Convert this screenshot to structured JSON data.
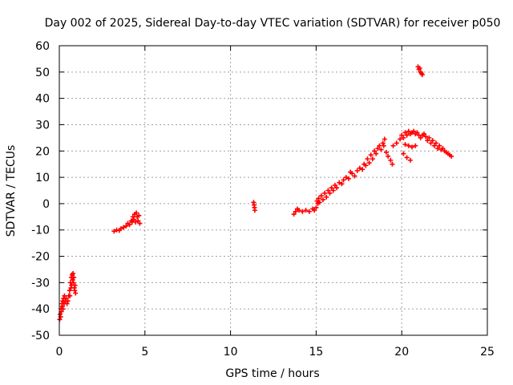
{
  "chart_data": {
    "type": "scatter",
    "title": "Day 002 of 2025, Sidereal Day-to-day VTEC variation (SDTVAR) for receiver p050",
    "xlabel": "GPS time / hours",
    "ylabel": "SDTVAR / TECUs",
    "xlim": [
      0,
      25
    ],
    "ylim": [
      -50,
      60
    ],
    "xticks": [
      0,
      5,
      10,
      15,
      20,
      25
    ],
    "yticks": [
      -50,
      -40,
      -30,
      -20,
      -10,
      0,
      10,
      20,
      30,
      40,
      50,
      60
    ],
    "xtick_labels": [
      "0",
      "5",
      "10",
      "15",
      "20",
      "25"
    ],
    "ytick_labels": [
      "-50",
      "-40",
      "-30",
      "-20",
      "-10",
      "0",
      "10",
      "20",
      "30",
      "40",
      "50",
      "60"
    ],
    "grid": true,
    "marker": "plus",
    "series": [
      {
        "color": "#ff0000",
        "points": [
          [
            0.02,
            -44
          ],
          [
            0.05,
            -42
          ],
          [
            0.08,
            -43
          ],
          [
            0.1,
            -40
          ],
          [
            0.12,
            -41
          ],
          [
            0.15,
            -38
          ],
          [
            0.18,
            -39
          ],
          [
            0.2,
            -37
          ],
          [
            0.22,
            -40
          ],
          [
            0.25,
            -36
          ],
          [
            0.28,
            -38
          ],
          [
            0.3,
            -35
          ],
          [
            0.35,
            -37
          ],
          [
            0.4,
            -36
          ],
          [
            0.45,
            -38
          ],
          [
            0.5,
            -37
          ],
          [
            0.55,
            -35
          ],
          [
            0.6,
            -33
          ],
          [
            0.62,
            -35
          ],
          [
            0.65,
            -30
          ],
          [
            0.68,
            -32
          ],
          [
            0.7,
            -28
          ],
          [
            0.72,
            -31
          ],
          [
            0.75,
            -27
          ],
          [
            0.78,
            -29
          ],
          [
            0.8,
            -26.5
          ],
          [
            0.82,
            -30
          ],
          [
            0.85,
            -28
          ],
          [
            0.88,
            -32
          ],
          [
            0.9,
            -33
          ],
          [
            0.92,
            -31
          ],
          [
            0.95,
            -34
          ],
          [
            3.2,
            -10.5
          ],
          [
            3.35,
            -10
          ],
          [
            3.5,
            -10.2
          ],
          [
            3.6,
            -9.5
          ],
          [
            3.75,
            -9
          ],
          [
            3.9,
            -8.5
          ],
          [
            4.0,
            -7.5
          ],
          [
            4.1,
            -8
          ],
          [
            4.2,
            -6.5
          ],
          [
            4.25,
            -7
          ],
          [
            4.3,
            -5
          ],
          [
            4.35,
            -6
          ],
          [
            4.4,
            -4
          ],
          [
            4.45,
            -7
          ],
          [
            4.5,
            -3.5
          ],
          [
            4.55,
            -5
          ],
          [
            4.6,
            -6.5
          ],
          [
            4.65,
            -4.5
          ],
          [
            4.7,
            -7.5
          ],
          [
            11.35,
            0.5
          ],
          [
            11.38,
            -0.5
          ],
          [
            11.4,
            -1.5
          ],
          [
            11.42,
            -2.5
          ],
          [
            13.7,
            -4
          ],
          [
            13.8,
            -3
          ],
          [
            13.9,
            -2
          ],
          [
            14.0,
            -2.5
          ],
          [
            14.2,
            -3
          ],
          [
            14.4,
            -2.5
          ],
          [
            14.6,
            -3
          ],
          [
            14.8,
            -2
          ],
          [
            14.9,
            -2.5
          ],
          [
            15.0,
            -1.5
          ],
          [
            15.05,
            1
          ],
          [
            15.1,
            0
          ],
          [
            15.15,
            2
          ],
          [
            15.2,
            0.5
          ],
          [
            15.3,
            3
          ],
          [
            15.4,
            1.5
          ],
          [
            15.5,
            4
          ],
          [
            15.6,
            2.5
          ],
          [
            15.7,
            5
          ],
          [
            15.8,
            4
          ],
          [
            15.9,
            6
          ],
          [
            16.0,
            5
          ],
          [
            16.1,
            7
          ],
          [
            16.2,
            6
          ],
          [
            16.35,
            8
          ],
          [
            16.5,
            7.5
          ],
          [
            16.6,
            9
          ],
          [
            16.75,
            10
          ],
          [
            16.9,
            9.5
          ],
          [
            17.0,
            12
          ],
          [
            17.1,
            11.5
          ],
          [
            17.25,
            10.5
          ],
          [
            17.4,
            12.5
          ],
          [
            17.55,
            13.5
          ],
          [
            17.7,
            13
          ],
          [
            17.8,
            15
          ],
          [
            17.9,
            14.5
          ],
          [
            18.0,
            17
          ],
          [
            18.1,
            15.5
          ],
          [
            18.2,
            18.5
          ],
          [
            18.3,
            17
          ],
          [
            18.4,
            20
          ],
          [
            18.5,
            19
          ],
          [
            18.6,
            21
          ],
          [
            18.7,
            22
          ],
          [
            18.8,
            20.5
          ],
          [
            18.9,
            23
          ],
          [
            19.0,
            24.5
          ],
          [
            18.95,
            22
          ],
          [
            19.1,
            19.5
          ],
          [
            19.2,
            18
          ],
          [
            19.35,
            16.5
          ],
          [
            19.45,
            15
          ],
          [
            19.5,
            22
          ],
          [
            19.7,
            23
          ],
          [
            19.9,
            24.5
          ],
          [
            20.0,
            26
          ],
          [
            20.1,
            25
          ],
          [
            20.2,
            27
          ],
          [
            20.3,
            26
          ],
          [
            20.4,
            27.5
          ],
          [
            20.5,
            26.5
          ],
          [
            20.6,
            27
          ],
          [
            20.7,
            27.5
          ],
          [
            20.8,
            26.5
          ],
          [
            20.9,
            27
          ],
          [
            21.0,
            26
          ],
          [
            21.1,
            25
          ],
          [
            21.2,
            26
          ],
          [
            21.3,
            26.5
          ],
          [
            21.4,
            25.5
          ],
          [
            21.5,
            24
          ],
          [
            21.6,
            25
          ],
          [
            21.7,
            23
          ],
          [
            21.8,
            24
          ],
          [
            21.9,
            22
          ],
          [
            22.0,
            23
          ],
          [
            22.1,
            21
          ],
          [
            22.2,
            22
          ],
          [
            22.3,
            20.5
          ],
          [
            22.4,
            21
          ],
          [
            22.5,
            20
          ],
          [
            22.6,
            19.5
          ],
          [
            22.7,
            19
          ],
          [
            22.8,
            18.5
          ],
          [
            22.9,
            18
          ],
          [
            20.2,
            22.5
          ],
          [
            20.4,
            22
          ],
          [
            20.6,
            21.5
          ],
          [
            20.8,
            22
          ],
          [
            20.1,
            19
          ],
          [
            20.3,
            17.5
          ],
          [
            20.5,
            16.5
          ],
          [
            20.95,
            52
          ],
          [
            21.0,
            51
          ],
          [
            21.05,
            51.5
          ],
          [
            21.1,
            50
          ],
          [
            21.15,
            49.5
          ],
          [
            21.2,
            49
          ]
        ]
      }
    ]
  }
}
